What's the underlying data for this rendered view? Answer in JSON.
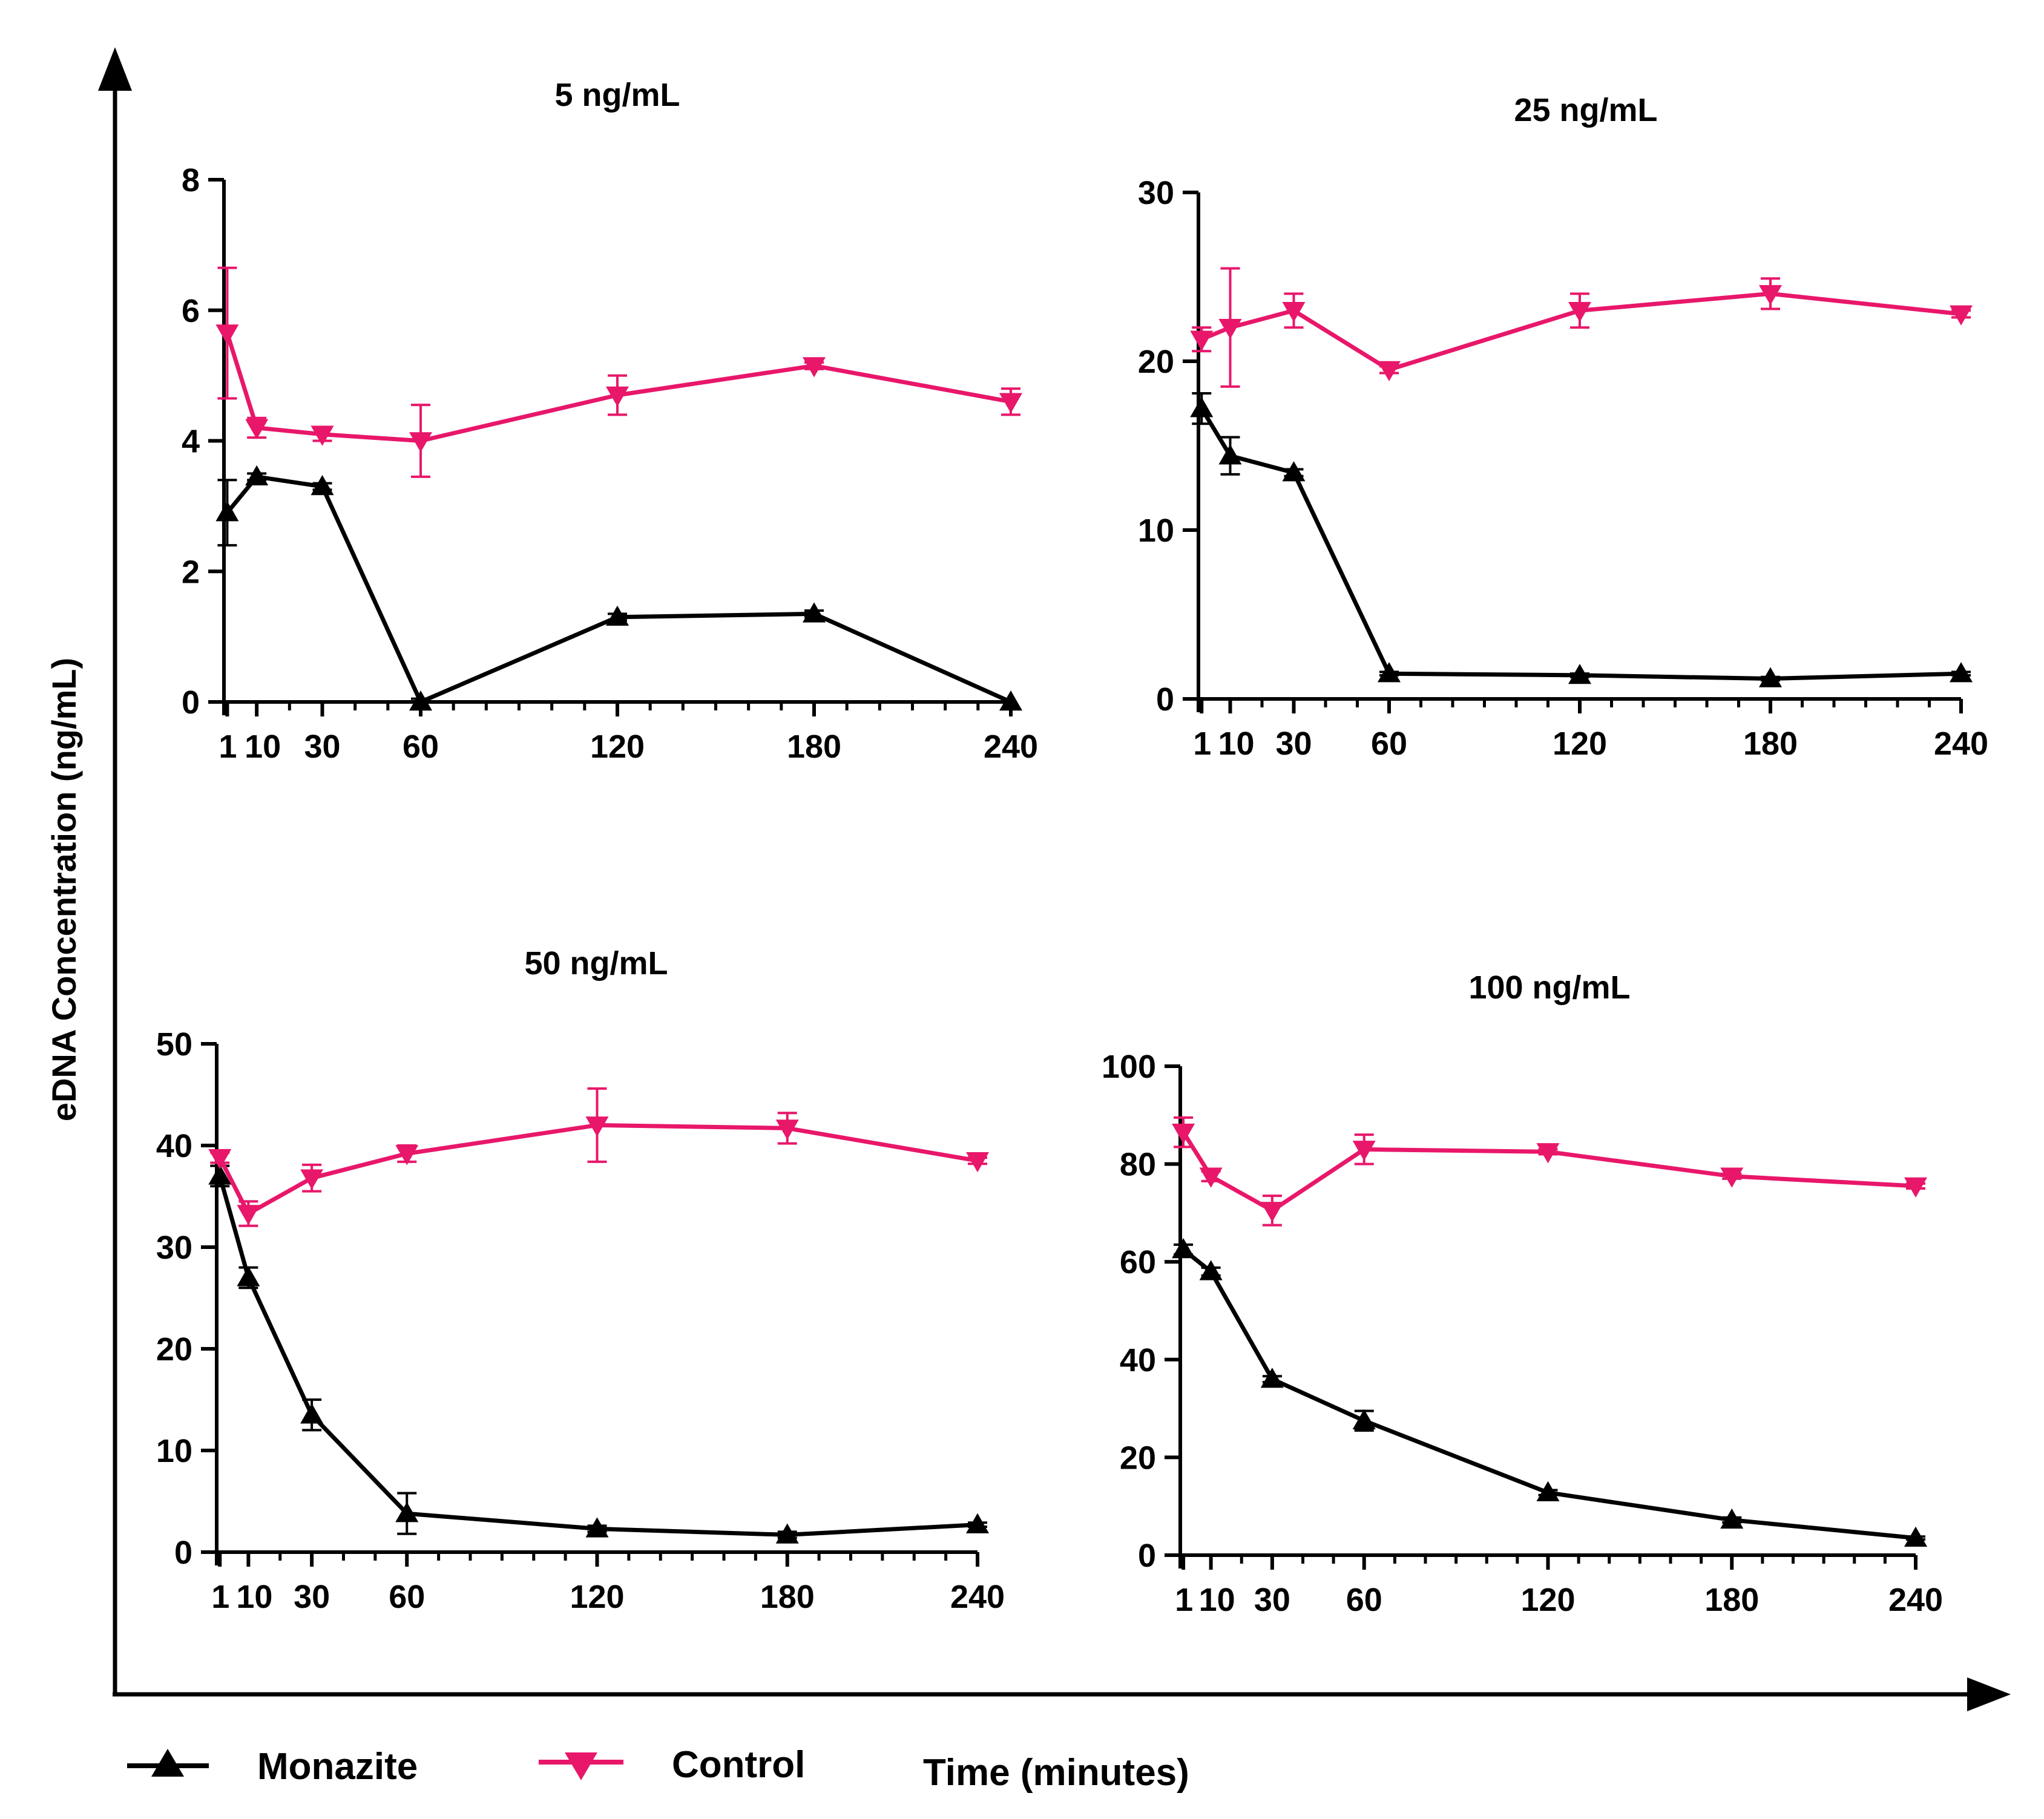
{
  "figure": {
    "y_axis_title": "eDNA Concentration (ng/mL)",
    "x_axis_title": "Time (minutes)",
    "legend": [
      {
        "label": "Monazite",
        "color": "#000000",
        "marker": "triangle-up"
      },
      {
        "label": "Control",
        "color": "#E8176A",
        "marker": "triangle-down"
      }
    ]
  },
  "chart_data": [
    {
      "type": "line",
      "title": "5 ng/mL",
      "xlabel": "Time (minutes)",
      "ylabel": "eDNA Concentration (ng/mL)",
      "xlim": [
        0,
        240
      ],
      "ylim": [
        0,
        8
      ],
      "x_ticks": [
        1,
        10,
        30,
        60,
        120,
        180,
        240
      ],
      "x_tick_labels": [
        "1",
        "10",
        "30",
        "60",
        "120",
        "180",
        "240"
      ],
      "y_ticks": [
        0,
        2,
        4,
        6,
        8
      ],
      "y_tick_labels": [
        "0",
        "2",
        "4",
        "6",
        "8"
      ],
      "x": [
        1,
        10,
        30,
        60,
        120,
        180,
        240
      ],
      "series": [
        {
          "name": "Monazite",
          "values": [
            2.9,
            3.45,
            3.3,
            0.0,
            1.3,
            1.35,
            0.0
          ],
          "error": [
            0.5,
            0.05,
            0.05,
            0.05,
            0.05,
            0.05,
            0.0
          ]
        },
        {
          "name": "Control",
          "values": [
            5.65,
            4.2,
            4.1,
            4.0,
            4.7,
            5.15,
            4.6
          ],
          "error": [
            1.0,
            0.15,
            0.1,
            0.55,
            0.3,
            0.05,
            0.2
          ]
        }
      ]
    },
    {
      "type": "line",
      "title": "25 ng/mL",
      "xlabel": "Time (minutes)",
      "ylabel": "eDNA Concentration (ng/mL)",
      "xlim": [
        0,
        240
      ],
      "ylim": [
        0,
        30
      ],
      "x_ticks": [
        1,
        10,
        30,
        60,
        120,
        180,
        240
      ],
      "x_tick_labels": [
        "1",
        "10",
        "30",
        "60",
        "120",
        "180",
        "240"
      ],
      "y_ticks": [
        0,
        10,
        20,
        30
      ],
      "y_tick_labels": [
        "0",
        "10",
        "20",
        "30"
      ],
      "x": [
        1,
        10,
        30,
        60,
        120,
        180,
        240
      ],
      "series": [
        {
          "name": "Monazite",
          "values": [
            17.2,
            14.4,
            13.4,
            1.5,
            1.4,
            1.2,
            1.5
          ],
          "error": [
            0.9,
            1.1,
            0.2,
            0.1,
            0.1,
            0.1,
            0.1
          ]
        },
        {
          "name": "Control",
          "values": [
            21.3,
            22.0,
            23.0,
            19.5,
            23.0,
            24.0,
            22.8
          ],
          "error": [
            0.7,
            3.5,
            1.0,
            0.2,
            1.0,
            0.9,
            0.2
          ]
        }
      ]
    },
    {
      "type": "line",
      "title": "50 ng/mL",
      "xlabel": "Time (minutes)",
      "ylabel": "eDNA Concentration (ng/mL)",
      "xlim": [
        0,
        240
      ],
      "ylim": [
        0,
        50
      ],
      "x_ticks": [
        1,
        10,
        30,
        60,
        120,
        180,
        240
      ],
      "x_tick_labels": [
        "1",
        "10",
        "30",
        "60",
        "120",
        "180",
        "240"
      ],
      "y_ticks": [
        0,
        10,
        20,
        30,
        40,
        50
      ],
      "y_tick_labels": [
        "0",
        "10",
        "20",
        "30",
        "40",
        "50"
      ],
      "x": [
        1,
        10,
        30,
        60,
        120,
        180,
        240
      ],
      "series": [
        {
          "name": "Monazite",
          "values": [
            37.0,
            27.0,
            13.5,
            3.8,
            2.3,
            1.7,
            2.7
          ],
          "error": [
            1.0,
            1.0,
            1.5,
            2.0,
            0.3,
            0.3,
            0.2
          ]
        },
        {
          "name": "Control",
          "values": [
            38.8,
            33.3,
            36.8,
            39.2,
            42.0,
            41.7,
            38.5
          ],
          "error": [
            0.5,
            1.2,
            1.3,
            0.8,
            3.6,
            1.5,
            0.3
          ]
        }
      ]
    },
    {
      "type": "line",
      "title": "100 ng/mL",
      "xlabel": "Time (minutes)",
      "ylabel": "eDNA Concentration (ng/mL)",
      "xlim": [
        0,
        240
      ],
      "ylim": [
        0,
        100
      ],
      "x_ticks": [
        1,
        10,
        30,
        60,
        120,
        180,
        240
      ],
      "x_tick_labels": [
        "1",
        "10",
        "30",
        "60",
        "120",
        "180",
        "240"
      ],
      "y_ticks": [
        0,
        20,
        40,
        60,
        80,
        100
      ],
      "y_tick_labels": [
        "0",
        "20",
        "40",
        "60",
        "80",
        "100"
      ],
      "x": [
        1,
        10,
        30,
        60,
        120,
        180,
        240
      ],
      "series": [
        {
          "name": "Monazite",
          "values": [
            62.5,
            58.0,
            36.0,
            27.5,
            12.8,
            7.2,
            3.5
          ],
          "error": [
            1.0,
            0.8,
            0.6,
            2.0,
            0.5,
            0.5,
            0.3
          ]
        },
        {
          "name": "Control",
          "values": [
            86.5,
            77.5,
            70.5,
            83.0,
            82.5,
            77.5,
            75.5
          ],
          "error": [
            3.0,
            1.0,
            3.0,
            3.0,
            0.5,
            0.5,
            0.5
          ]
        }
      ]
    }
  ]
}
